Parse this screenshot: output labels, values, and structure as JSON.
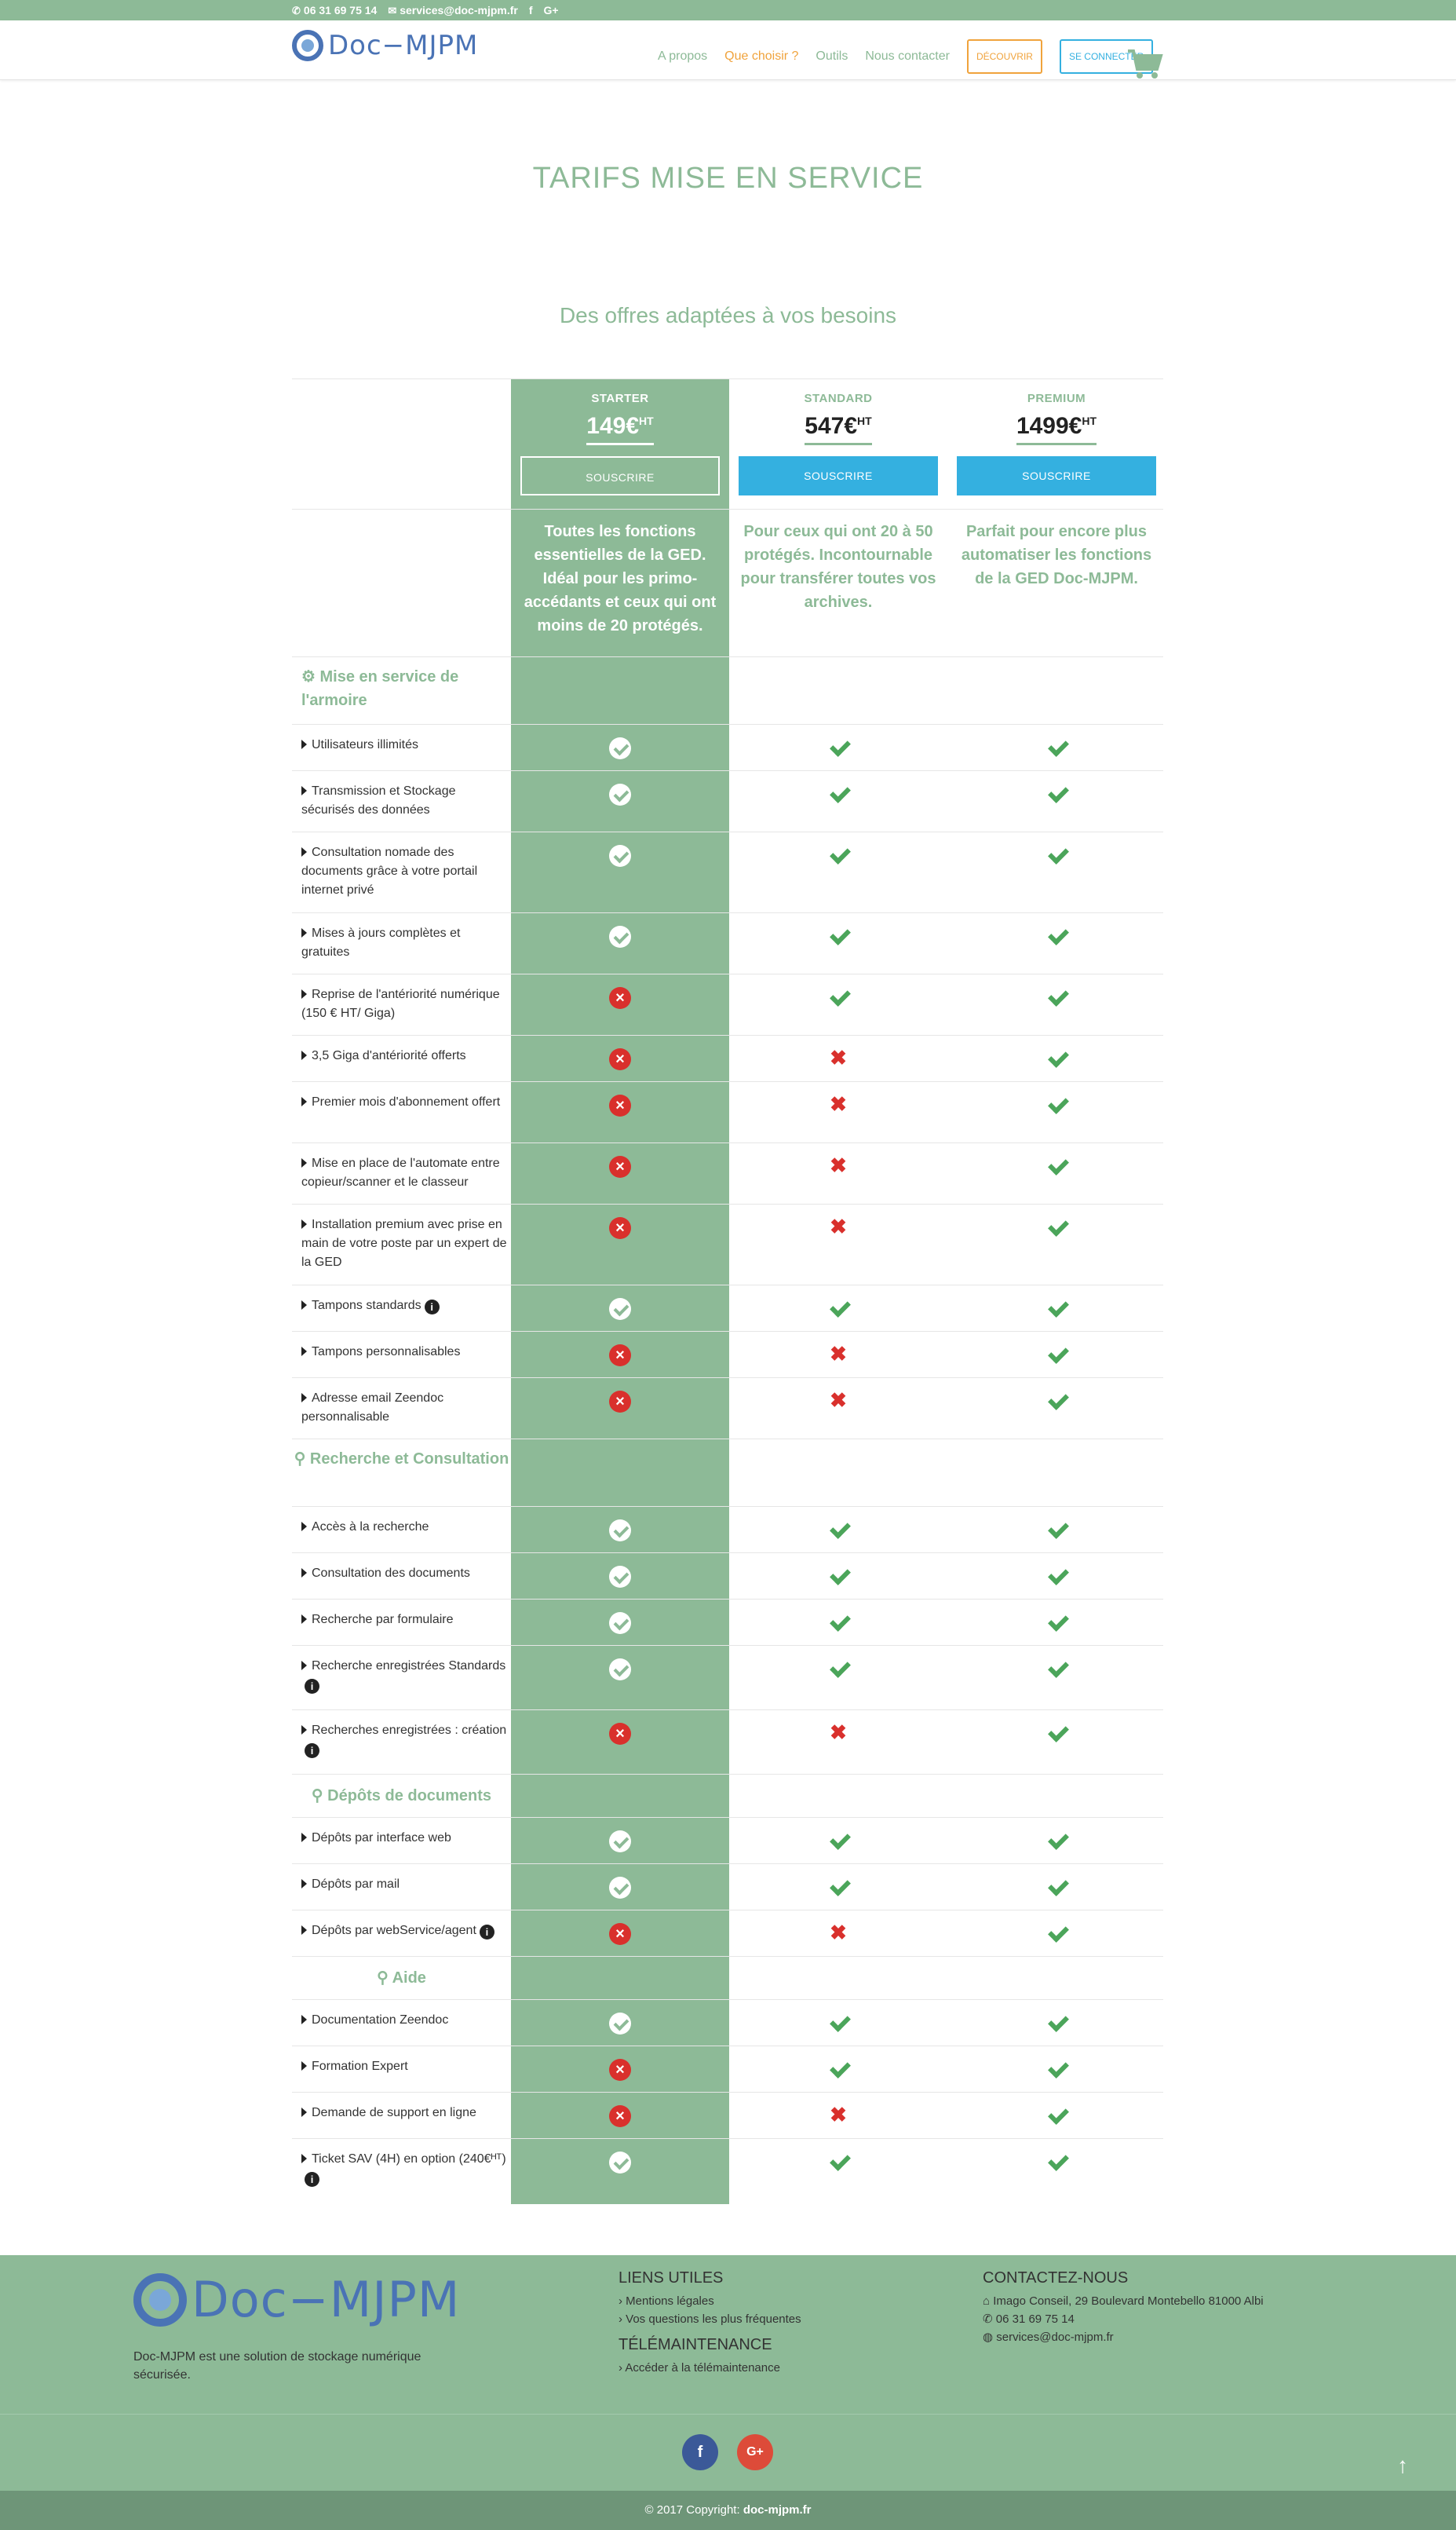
{
  "topbar": {
    "phone": "06 31 69 75 14",
    "email": "services@doc-mjpm.fr",
    "facebook": "f",
    "google": "G+"
  },
  "header": {
    "logo": "Doc−MJPM",
    "nav": [
      "A propos",
      "Que choisir ?",
      "Outils",
      "Nous contacter"
    ],
    "discover": "DÉCOUVRIR",
    "login": "SE CONNECTER"
  },
  "page": {
    "title": "TARIFS MISE EN SERVICE",
    "subtitle": "Des offres adaptées à vos besoins"
  },
  "plans": [
    {
      "name": "STARTER",
      "price": "149€",
      "sup": "HT",
      "button": "SOUSCRIRE",
      "desc": "Toutes les fonctions essentielles de la GED. Idéal pour les primo-accédants et ceux qui ont moins de 20 protégés."
    },
    {
      "name": "STANDARD",
      "price": "547€",
      "sup": "HT",
      "button": "SOUSCRIRE",
      "desc": "Pour ceux qui ont 20 à 50 protégés. Incontournable pour transférer toutes vos archives."
    },
    {
      "name": "PREMIUM",
      "price": "1499€",
      "sup": "HT",
      "button": "SOUSCRIRE",
      "desc": "Parfait pour encore plus automatiser les fonctions de la GED Doc-MJPM."
    }
  ],
  "sections": [
    {
      "title": "Mise en service de l'armoire",
      "icon": "gear-icon"
    },
    {
      "title": "Recherche et Consultation",
      "icon": "search-icon"
    },
    {
      "title": "Dépôts de documents",
      "icon": "search-icon"
    },
    {
      "title": "Aide",
      "icon": "search-icon"
    }
  ],
  "features": [
    {
      "label": "Utilisateurs illimités",
      "values": [
        true,
        true,
        true
      ],
      "info": false
    },
    {
      "label": "Transmission et Stockage sécurisés des données",
      "values": [
        true,
        true,
        true
      ],
      "info": false
    },
    {
      "label": "Consultation nomade des documents grâce à votre portail internet privé",
      "values": [
        true,
        true,
        true
      ],
      "info": false
    },
    {
      "label": "Mises à jours complètes et gratuites",
      "values": [
        true,
        true,
        true
      ],
      "info": false
    },
    {
      "label": "Reprise de l'antériorité numérique (150 € HT/ Giga)",
      "values": [
        false,
        true,
        true
      ],
      "info": false
    },
    {
      "label": "3,5 Giga d'antériorité offerts",
      "values": [
        false,
        false,
        true
      ],
      "info": false
    },
    {
      "label": "Premier mois d'abonnement offert",
      "values": [
        false,
        false,
        true
      ],
      "info": false
    },
    {
      "label": "Mise en place de l'automate entre copieur/scanner et le classeur",
      "values": [
        false,
        false,
        true
      ],
      "info": false
    },
    {
      "label": "Installation premium avec prise en main de votre poste par un expert de la GED",
      "values": [
        false,
        false,
        true
      ],
      "info": false
    },
    {
      "label": "Tampons standards",
      "values": [
        true,
        true,
        true
      ],
      "info": true
    },
    {
      "label": "Tampons personnalisables",
      "values": [
        false,
        false,
        true
      ],
      "info": false
    },
    {
      "label": "Adresse email Zeendoc personnalisable",
      "values": [
        false,
        false,
        true
      ],
      "info": false
    },
    {
      "label": "Accès à la recherche",
      "values": [
        true,
        true,
        true
      ],
      "info": false
    },
    {
      "label": "Consultation des documents",
      "values": [
        true,
        true,
        true
      ],
      "info": false
    },
    {
      "label": "Recherche par formulaire",
      "values": [
        true,
        true,
        true
      ],
      "info": false
    },
    {
      "label": "Recherche enregistrées Standards",
      "values": [
        true,
        true,
        true
      ],
      "info": true
    },
    {
      "label": "Recherches enregistrées : création",
      "values": [
        false,
        false,
        true
      ],
      "info": true
    },
    {
      "label": "Dépôts par interface web",
      "values": [
        true,
        true,
        true
      ],
      "info": false
    },
    {
      "label": "Dépôts par mail",
      "values": [
        true,
        true,
        true
      ],
      "info": false
    },
    {
      "label": "Dépôts par webService/agent",
      "values": [
        false,
        false,
        true
      ],
      "info": true
    },
    {
      "label": "Documentation Zeendoc",
      "values": [
        true,
        true,
        true
      ],
      "info": false
    },
    {
      "label": "Formation Expert",
      "values": [
        false,
        true,
        true
      ],
      "info": false
    },
    {
      "label": "Demande de support en ligne",
      "values": [
        false,
        false,
        true
      ],
      "info": false
    },
    {
      "label": "Ticket SAV (4H) en option (240€ᴴᵀ)",
      "values": [
        true,
        true,
        true
      ],
      "info": true
    }
  ],
  "footer": {
    "logo": "Doc−MJPM",
    "about": "Doc-MJPM est une solution de stockage numérique sécurisée.",
    "links_title": "LIENS UTILES",
    "links": [
      "› Mentions légales",
      "› Vos questions les plus fréquentes"
    ],
    "tele_title": "TÉLÉMAINTENANCE",
    "tele_link": "› Accéder à la télémaintenance",
    "contact_title": "CONTACTEZ-NOUS",
    "address": "Imago Conseil, 29 Boulevard Montebello 81000 Albi",
    "phone": "06 31 69 75 14",
    "email": "services@doc-mjpm.fr",
    "facebook": "f",
    "google": "G+",
    "copyright_prefix": "© 2017 Copyright:",
    "copyright_link": "doc-mjpm.fr"
  },
  "colors": {
    "green": "#8dba97",
    "blue": "#34b0e0",
    "orange": "#f0a33c",
    "red": "#d9302c",
    "check": "#4ba55a"
  }
}
